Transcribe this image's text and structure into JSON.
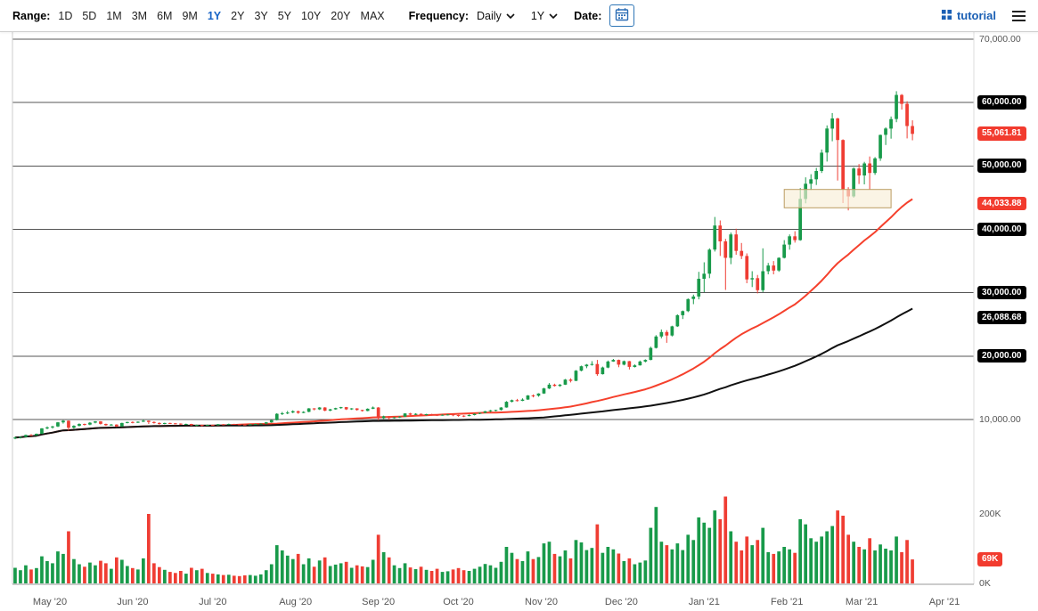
{
  "toolbar": {
    "range_label": "Range:",
    "ranges": [
      "1D",
      "5D",
      "1M",
      "3M",
      "6M",
      "9M",
      "1Y",
      "2Y",
      "3Y",
      "5Y",
      "10Y",
      "20Y",
      "MAX"
    ],
    "active_range": "1Y",
    "frequency_label": "Frequency:",
    "frequency_value": "Daily",
    "period_value": "1Y",
    "date_label": "Date:",
    "brand": "tutorial"
  },
  "colors": {
    "up": "#189a4a",
    "down": "#ef3d33",
    "ma_fast": "#f5402c",
    "ma_slow": "#111111",
    "grid": "#555555",
    "accent_blue": "#1763c6",
    "brand_blue": "#1a5fb4",
    "badge_black": "#000000",
    "badge_red": "#f23b2e",
    "annotation_fill": "#f7eed7",
    "annotation_stroke": "#bb9c62"
  },
  "chart_data": {
    "type": "candlestick",
    "panes": [
      "price",
      "volume"
    ],
    "frequency": "Daily",
    "slots_total": 180,
    "price_ticks": [
      {
        "label": "70,000.00",
        "price": 70000,
        "style": "plain"
      },
      {
        "label": "60,000.00",
        "price": 60000,
        "style": "black"
      },
      {
        "label": "50,000.00",
        "price": 50000,
        "style": "black"
      },
      {
        "label": "40,000.00",
        "price": 40000,
        "style": "black"
      },
      {
        "label": "30,000.00",
        "price": 30000,
        "style": "black"
      },
      {
        "label": "20,000.00",
        "price": 20000,
        "style": "black"
      },
      {
        "label": "10,000.00",
        "price": 10000,
        "style": "plain"
      }
    ],
    "float_badges": [
      {
        "label": "55,061.81",
        "price": 55061.81,
        "style": "red",
        "name": "last-price-badge"
      },
      {
        "label": "44,033.88",
        "price": 44033.88,
        "style": "red",
        "name": "ma-fast-badge"
      },
      {
        "label": "26,088.68",
        "price": 26088.68,
        "style": "black",
        "name": "ma-slow-badge"
      }
    ],
    "volume_ticks": [
      {
        "label": "200K",
        "value": 200
      },
      {
        "label": "0K",
        "value": 0
      }
    ],
    "volume_badge": {
      "label": "69K",
      "value": 69,
      "style": "red"
    },
    "overlays": [
      {
        "name": "ma-fast",
        "window": 40,
        "color": "#f5402c",
        "stroke_width": 2,
        "end_value_label": "44,033.88"
      },
      {
        "name": "ma-slow",
        "window": 100,
        "color": "#111111",
        "stroke_width": 2,
        "end_value_label": "26,088.68"
      }
    ],
    "annotation_rect": {
      "i0": 144,
      "i1": 164,
      "price_top": 46300,
      "price_bottom": 43400
    },
    "months": [
      {
        "label": "May '20",
        "i": 6.5
      },
      {
        "label": "Jun '20",
        "i": 22
      },
      {
        "label": "Jul '20",
        "i": 37
      },
      {
        "label": "Aug '20",
        "i": 52.5
      },
      {
        "label": "Sep '20",
        "i": 68
      },
      {
        "label": "Oct '20",
        "i": 83
      },
      {
        "label": "Nov '20",
        "i": 98.5
      },
      {
        "label": "Dec '20",
        "i": 113.5
      },
      {
        "label": "Jan '21",
        "i": 129
      },
      {
        "label": "Feb '21",
        "i": 144.5
      },
      {
        "label": "Mar '21",
        "i": 158.5
      },
      {
        "label": "Apr '21",
        "i": 174
      }
    ],
    "candles_format": [
      "open",
      "high",
      "low",
      "close",
      "volume_K"
    ],
    "candles": [
      [
        7050,
        7300,
        6900,
        7150,
        45
      ],
      [
        7150,
        7320,
        7000,
        7250,
        38
      ],
      [
        7250,
        7620,
        7150,
        7550,
        52
      ],
      [
        7550,
        7700,
        7400,
        7500,
        40
      ],
      [
        7500,
        7800,
        7450,
        7750,
        44
      ],
      [
        7750,
        8650,
        7700,
        8600,
        78
      ],
      [
        8600,
        8900,
        8450,
        8750,
        64
      ],
      [
        8750,
        9000,
        8550,
        8900,
        58
      ],
      [
        8900,
        9600,
        8800,
        9550,
        92
      ],
      [
        9550,
        9900,
        9350,
        9800,
        85
      ],
      [
        9800,
        9850,
        8250,
        8700,
        150
      ],
      [
        8700,
        9100,
        8550,
        9000,
        70
      ],
      [
        9000,
        9400,
        8900,
        9300,
        55
      ],
      [
        9300,
        9350,
        9050,
        9200,
        48
      ],
      [
        9200,
        9600,
        9100,
        9500,
        60
      ],
      [
        9500,
        9750,
        9400,
        9700,
        52
      ],
      [
        9700,
        9750,
        9200,
        9300,
        65
      ],
      [
        9300,
        9350,
        9000,
        9100,
        58
      ],
      [
        9100,
        9300,
        9050,
        9200,
        42
      ],
      [
        9200,
        9250,
        8800,
        8900,
        75
      ],
      [
        8900,
        9500,
        8850,
        9450,
        68
      ],
      [
        9450,
        9650,
        9400,
        9600,
        50
      ],
      [
        9600,
        9700,
        9400,
        9500,
        44
      ],
      [
        9500,
        9700,
        9450,
        9650,
        40
      ],
      [
        9650,
        10000,
        9600,
        9800,
        72
      ],
      [
        9800,
        9850,
        9300,
        9600,
        200
      ],
      [
        9600,
        9700,
        9350,
        9450,
        58
      ],
      [
        9450,
        9550,
        9200,
        9300,
        47
      ],
      [
        9300,
        9500,
        9250,
        9450,
        39
      ],
      [
        9450,
        9500,
        9300,
        9400,
        33
      ],
      [
        9400,
        9450,
        9250,
        9350,
        30
      ],
      [
        9350,
        9400,
        9150,
        9250,
        36
      ],
      [
        9250,
        9350,
        9200,
        9300,
        28
      ],
      [
        9300,
        9320,
        9000,
        9100,
        45
      ],
      [
        9100,
        9200,
        8950,
        9150,
        38
      ],
      [
        9150,
        9180,
        8900,
        9050,
        42
      ],
      [
        9050,
        9200,
        9000,
        9150,
        30
      ],
      [
        9150,
        9200,
        9000,
        9100,
        28
      ],
      [
        9100,
        9300,
        9050,
        9250,
        26
      ],
      [
        9250,
        9290,
        9100,
        9200,
        24
      ],
      [
        9200,
        9350,
        9150,
        9300,
        25
      ],
      [
        9300,
        9330,
        9180,
        9250,
        22
      ],
      [
        9250,
        9280,
        9120,
        9200,
        21
      ],
      [
        9200,
        9230,
        9080,
        9150,
        23
      ],
      [
        9150,
        9280,
        9100,
        9250,
        24
      ],
      [
        9250,
        9340,
        9200,
        9300,
        22
      ],
      [
        9300,
        9400,
        9250,
        9350,
        26
      ],
      [
        9350,
        9600,
        9300,
        9550,
        38
      ],
      [
        9550,
        9950,
        9500,
        9900,
        55
      ],
      [
        9900,
        11000,
        9850,
        10900,
        110
      ],
      [
        10900,
        11200,
        10700,
        11000,
        95
      ],
      [
        11000,
        11350,
        10850,
        11100,
        80
      ],
      [
        11100,
        11450,
        11000,
        11300,
        70
      ],
      [
        11300,
        11400,
        10900,
        11050,
        85
      ],
      [
        11050,
        11300,
        11000,
        11200,
        55
      ],
      [
        11200,
        11800,
        11150,
        11750,
        72
      ],
      [
        11750,
        11800,
        11450,
        11600,
        48
      ],
      [
        11600,
        11950,
        11500,
        11900,
        66
      ],
      [
        11900,
        11950,
        11300,
        11400,
        75
      ],
      [
        11400,
        11680,
        11300,
        11600,
        50
      ],
      [
        11600,
        11850,
        11550,
        11800,
        54
      ],
      [
        11800,
        12000,
        11700,
        11950,
        58
      ],
      [
        11950,
        11980,
        11500,
        11600,
        62
      ],
      [
        11600,
        11800,
        11520,
        11750,
        45
      ],
      [
        11750,
        11780,
        11400,
        11500,
        52
      ],
      [
        11500,
        11550,
        11250,
        11350,
        49
      ],
      [
        11350,
        11750,
        11300,
        11700,
        47
      ],
      [
        11700,
        12050,
        11650,
        11900,
        68
      ],
      [
        11900,
        11950,
        9900,
        10200,
        140
      ],
      [
        10200,
        10600,
        10100,
        10500,
        90
      ],
      [
        10500,
        10550,
        9950,
        10250,
        75
      ],
      [
        10250,
        10400,
        10150,
        10350,
        52
      ],
      [
        10350,
        10500,
        10250,
        10450,
        44
      ],
      [
        10450,
        11000,
        10400,
        10950,
        58
      ],
      [
        10950,
        11050,
        10650,
        10750,
        46
      ],
      [
        10750,
        11000,
        10700,
        10900,
        41
      ],
      [
        10900,
        10950,
        10550,
        10700,
        48
      ],
      [
        10700,
        10900,
        10650,
        10850,
        39
      ],
      [
        10850,
        10900,
        10600,
        10750,
        36
      ],
      [
        10750,
        10800,
        10550,
        10700,
        42
      ],
      [
        10700,
        10800,
        10600,
        10750,
        33
      ],
      [
        10750,
        10850,
        10650,
        10800,
        35
      ],
      [
        10800,
        10850,
        10520,
        10700,
        40
      ],
      [
        10700,
        10750,
        10450,
        10600,
        44
      ],
      [
        10600,
        10680,
        10400,
        10550,
        38
      ],
      [
        10550,
        10800,
        10500,
        10700,
        36
      ],
      [
        10700,
        10950,
        10650,
        10900,
        42
      ],
      [
        10900,
        11100,
        10850,
        11050,
        48
      ],
      [
        11050,
        11350,
        11000,
        11300,
        56
      ],
      [
        11300,
        11500,
        11200,
        11450,
        52
      ],
      [
        11450,
        11550,
        11300,
        11500,
        45
      ],
      [
        11500,
        11950,
        11420,
        11900,
        62
      ],
      [
        11900,
        12900,
        11850,
        12800,
        105
      ],
      [
        12800,
        13150,
        12700,
        13050,
        88
      ],
      [
        13050,
        13250,
        12850,
        12950,
        70
      ],
      [
        12950,
        13350,
        12900,
        13150,
        64
      ],
      [
        13150,
        13850,
        13100,
        13800,
        92
      ],
      [
        13800,
        13950,
        13500,
        13750,
        70
      ],
      [
        13750,
        14150,
        13600,
        14100,
        76
      ],
      [
        14100,
        15000,
        14050,
        14900,
        115
      ],
      [
        14900,
        15750,
        14800,
        15500,
        120
      ],
      [
        15500,
        15650,
        15200,
        15300,
        85
      ],
      [
        15300,
        15600,
        15150,
        15500,
        78
      ],
      [
        15500,
        16400,
        15450,
        16300,
        95
      ],
      [
        16300,
        16500,
        15850,
        16100,
        72
      ],
      [
        16100,
        17800,
        16050,
        17700,
        125
      ],
      [
        17700,
        18500,
        17600,
        18400,
        118
      ],
      [
        18400,
        18750,
        18100,
        18650,
        96
      ],
      [
        18650,
        19200,
        18500,
        18750,
        102
      ],
      [
        18750,
        19400,
        16900,
        17150,
        170
      ],
      [
        17150,
        18350,
        17100,
        18200,
        88
      ],
      [
        18200,
        19300,
        18100,
        19150,
        105
      ],
      [
        19150,
        19550,
        19100,
        19400,
        98
      ],
      [
        19400,
        19450,
        18250,
        18650,
        86
      ],
      [
        18650,
        19300,
        18550,
        19200,
        64
      ],
      [
        19200,
        19250,
        17900,
        18300,
        72
      ],
      [
        18300,
        18700,
        18200,
        18550,
        55
      ],
      [
        18550,
        19300,
        18500,
        19150,
        60
      ],
      [
        19150,
        19500,
        19000,
        19400,
        66
      ],
      [
        19400,
        21500,
        19350,
        21300,
        160
      ],
      [
        21300,
        23300,
        21200,
        23100,
        220
      ],
      [
        23100,
        24200,
        22800,
        23800,
        120
      ],
      [
        23800,
        24100,
        22100,
        23250,
        110
      ],
      [
        23250,
        24800,
        23100,
        24700,
        98
      ],
      [
        24700,
        26600,
        24600,
        26450,
        115
      ],
      [
        26450,
        27200,
        25850,
        27100,
        96
      ],
      [
        27100,
        29100,
        26950,
        29000,
        140
      ],
      [
        29000,
        29700,
        28200,
        29400,
        125
      ],
      [
        29400,
        33300,
        28950,
        32200,
        190
      ],
      [
        32200,
        34800,
        30100,
        33000,
        175
      ],
      [
        33000,
        37000,
        32300,
        36800,
        160
      ],
      [
        36800,
        41950,
        36500,
        40600,
        210
      ],
      [
        40600,
        41400,
        35800,
        38100,
        185
      ],
      [
        38100,
        38500,
        30450,
        35500,
        250
      ],
      [
        35500,
        39500,
        34500,
        39200,
        150
      ],
      [
        39200,
        40100,
        36000,
        36600,
        120
      ],
      [
        36600,
        37850,
        35300,
        35800,
        95
      ],
      [
        35800,
        36200,
        31500,
        32100,
        135
      ],
      [
        32100,
        33400,
        30900,
        32300,
        110
      ],
      [
        32300,
        32800,
        29900,
        30400,
        125
      ],
      [
        30400,
        37000,
        30100,
        33400,
        160
      ],
      [
        33400,
        34700,
        32900,
        34300,
        90
      ],
      [
        34300,
        35000,
        32900,
        33500,
        85
      ],
      [
        33500,
        35600,
        33300,
        35500,
        92
      ],
      [
        35500,
        38300,
        35400,
        37600,
        105
      ],
      [
        37600,
        39200,
        36800,
        38900,
        98
      ],
      [
        38900,
        39700,
        37900,
        38300,
        88
      ],
      [
        38300,
        46500,
        38200,
        44800,
        185
      ],
      [
        44800,
        48200,
        44100,
        47200,
        170
      ],
      [
        47200,
        48700,
        46200,
        47900,
        130
      ],
      [
        47900,
        49700,
        47000,
        49200,
        120
      ],
      [
        49200,
        52600,
        48900,
        52100,
        135
      ],
      [
        52100,
        56400,
        50700,
        55900,
        150
      ],
      [
        55900,
        58350,
        53900,
        57500,
        165
      ],
      [
        57500,
        57600,
        47700,
        54100,
        210
      ],
      [
        54100,
        54200,
        44150,
        46300,
        195
      ],
      [
        46300,
        46650,
        43000,
        45200,
        140
      ],
      [
        45200,
        49800,
        45000,
        49600,
        120
      ],
      [
        49600,
        50300,
        47150,
        48500,
        105
      ],
      [
        48500,
        50650,
        47100,
        50400,
        98
      ],
      [
        50400,
        51500,
        46300,
        48900,
        130
      ],
      [
        48900,
        51400,
        48600,
        51200,
        95
      ],
      [
        51200,
        54950,
        50800,
        54900,
        112
      ],
      [
        54900,
        56100,
        53300,
        55900,
        100
      ],
      [
        55900,
        57800,
        54300,
        57400,
        95
      ],
      [
        57400,
        61800,
        56900,
        61200,
        135
      ],
      [
        61200,
        61350,
        58900,
        59800,
        90
      ],
      [
        59800,
        60200,
        54350,
        56300,
        125
      ],
      [
        56300,
        57200,
        54050,
        55061.81,
        69
      ]
    ]
  }
}
